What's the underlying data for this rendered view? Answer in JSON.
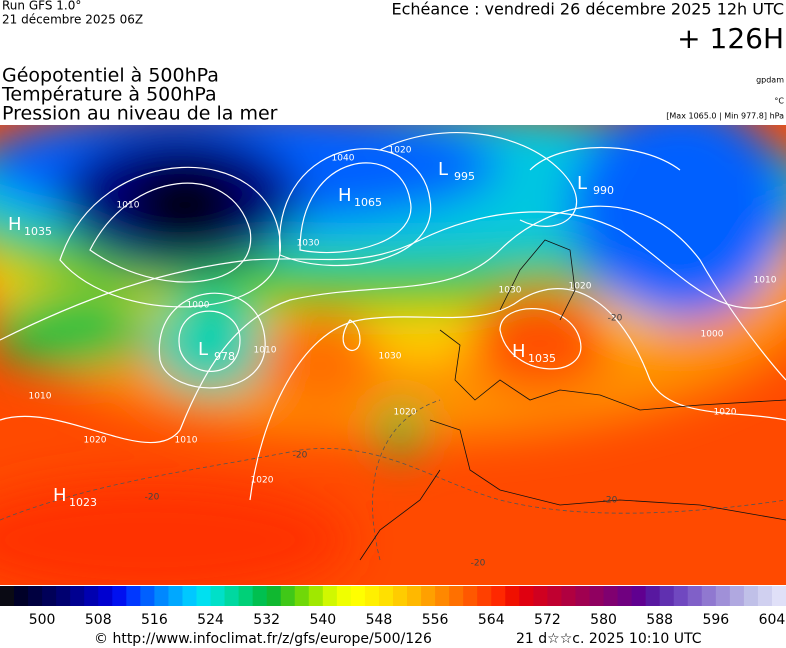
{
  "header": {
    "run": "Run GFS 1.0°",
    "run_date": "21 décembre 2025 06Z",
    "valid": "Echéance : vendredi 26 décembre 2025 12h UTC",
    "lead": "+ 126H",
    "fields": [
      "Géopotentiel à 500hPa",
      "Température à 500hPa",
      "Pression au niveau de la mer"
    ],
    "units": [
      "gpdam",
      "°C",
      "[Max 1065.0 | Min 977.8] hPa"
    ]
  },
  "map": {
    "systems": [
      {
        "kind": "H",
        "value": 1035
      },
      {
        "kind": "H",
        "value": 1065
      },
      {
        "kind": "L",
        "value": 995
      },
      {
        "kind": "L",
        "value": 990
      },
      {
        "kind": "L",
        "value": 978
      },
      {
        "kind": "H",
        "value": 1035
      },
      {
        "kind": "H",
        "value": 1023
      }
    ],
    "isobar_labels": [
      1010,
      1040,
      1020,
      1030,
      1000,
      1010,
      1020,
      1030,
      1010,
      1020,
      1020,
      1010,
      1000,
      1010,
      1020,
      1030,
      1020
    ],
    "isotherm_labels": [
      "-20",
      "-20",
      "-20",
      "-20",
      "-20"
    ]
  },
  "legend": {
    "lim": [
      494,
      606
    ],
    "ticks": [
      500,
      508,
      516,
      524,
      532,
      540,
      548,
      556,
      564,
      572,
      580,
      588,
      596,
      604
    ],
    "colors": [
      "#0a0a14",
      "#000028",
      "#000040",
      "#000058",
      "#000070",
      "#000090",
      "#0000b0",
      "#0000d0",
      "#0010f0",
      "#0038ff",
      "#0060ff",
      "#0088ff",
      "#00a8ff",
      "#00c8ff",
      "#00e0f0",
      "#00e0c8",
      "#00d8a0",
      "#00d078",
      "#00c050",
      "#10b830",
      "#40c818",
      "#70d808",
      "#a0e800",
      "#d0f800",
      "#f0ff00",
      "#ffff00",
      "#fff000",
      "#ffe000",
      "#ffcc00",
      "#ffb800",
      "#ffa000",
      "#ff8800",
      "#ff7000",
      "#ff5800",
      "#ff4000",
      "#ff2800",
      "#f01000",
      "#e00010",
      "#d00020",
      "#c00030",
      "#b00040",
      "#a00050",
      "#900060",
      "#800070",
      "#700080",
      "#600090",
      "#5818a0",
      "#6030b0",
      "#7048c0",
      "#8060c8",
      "#9078d0",
      "#a090d8",
      "#b0a8e0",
      "#c0c0e8",
      "#d0d0f0",
      "#e0e0f8"
    ]
  },
  "footer": {
    "source": "© http://www.infoclimat.fr/z/gfs/europe/500/126",
    "generated": "21 d☆☆c. 2025 10:10 UTC"
  }
}
